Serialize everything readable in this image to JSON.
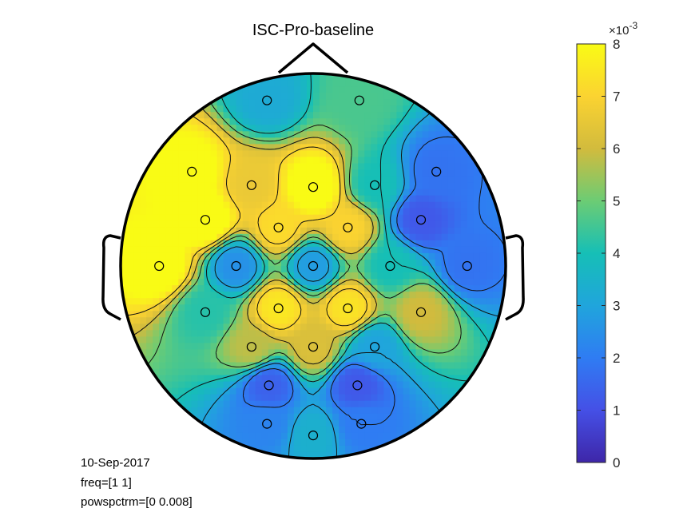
{
  "chart_data": {
    "type": "heatmap",
    "subtype": "eeg-topoplot",
    "title": "ISC-Pro-baseline",
    "colormap": "parula",
    "clim": [
      0,
      0.008
    ],
    "colorbar": {
      "ticks": [
        "0",
        "1",
        "2",
        "3",
        "4",
        "5",
        "6",
        "7",
        "8"
      ],
      "exponent_label": "×10",
      "exponent": "-3"
    },
    "electrodes": [
      {
        "x": -0.24,
        "y": 0.86,
        "v": 0.0032
      },
      {
        "x": 0.24,
        "y": 0.86,
        "v": 0.0046
      },
      {
        "x": -0.63,
        "y": 0.49,
        "v": 0.0082
      },
      {
        "x": -0.32,
        "y": 0.42,
        "v": 0.0066
      },
      {
        "x": 0.0,
        "y": 0.41,
        "v": 0.0084
      },
      {
        "x": 0.32,
        "y": 0.42,
        "v": 0.004
      },
      {
        "x": 0.64,
        "y": 0.49,
        "v": 0.0018
      },
      {
        "x": -0.56,
        "y": 0.24,
        "v": 0.0085
      },
      {
        "x": -0.18,
        "y": 0.2,
        "v": 0.0072
      },
      {
        "x": 0.18,
        "y": 0.2,
        "v": 0.007
      },
      {
        "x": 0.56,
        "y": 0.24,
        "v": 0.0012
      },
      {
        "x": -0.8,
        "y": 0.0,
        "v": 0.0084
      },
      {
        "x": -0.4,
        "y": 0.0,
        "v": 0.0025
      },
      {
        "x": 0.0,
        "y": 0.0,
        "v": 0.0028
      },
      {
        "x": 0.4,
        "y": 0.0,
        "v": 0.004
      },
      {
        "x": 0.8,
        "y": 0.0,
        "v": 0.0018
      },
      {
        "x": -0.56,
        "y": -0.24,
        "v": 0.0042
      },
      {
        "x": -0.18,
        "y": -0.22,
        "v": 0.0075
      },
      {
        "x": 0.18,
        "y": -0.22,
        "v": 0.0074
      },
      {
        "x": 0.56,
        "y": -0.24,
        "v": 0.006
      },
      {
        "x": -0.32,
        "y": -0.42,
        "v": 0.0058
      },
      {
        "x": 0.0,
        "y": -0.42,
        "v": 0.0062
      },
      {
        "x": 0.32,
        "y": -0.42,
        "v": 0.003
      },
      {
        "x": -0.23,
        "y": -0.62,
        "v": 0.0014
      },
      {
        "x": 0.23,
        "y": -0.62,
        "v": 0.0012
      },
      {
        "x": -0.24,
        "y": -0.82,
        "v": 0.0022
      },
      {
        "x": 0.25,
        "y": -0.82,
        "v": 0.002
      },
      {
        "x": 0.0,
        "y": -0.88,
        "v": 0.0034
      }
    ]
  },
  "info": {
    "date": "10-Sep-2017",
    "freq": "freq=[1 1]",
    "range": "powspctrm=[0 0.008]"
  }
}
